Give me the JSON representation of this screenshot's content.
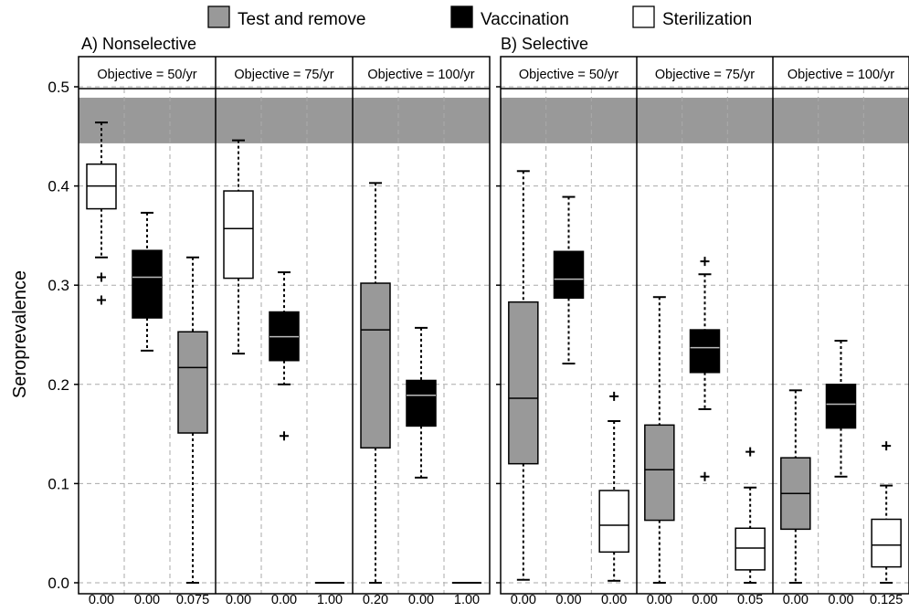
{
  "legend": [
    {
      "label": "Test and remove",
      "color": "#999999"
    },
    {
      "label": "Vaccination",
      "color": "#000000"
    },
    {
      "label": "Sterilization",
      "color": "#ffffff"
    }
  ],
  "ylabel": "Seroprevalence",
  "yticks": [
    "0.0",
    "0.1",
    "0.2",
    "0.3",
    "0.4",
    "0.5"
  ],
  "target_band": [
    0.443,
    0.489
  ],
  "chart_data": {
    "type": "box",
    "ylim": [
      0,
      0.5
    ],
    "ylabel": "Seroprevalence",
    "grid": true,
    "legend_position": "top",
    "groups": [
      {
        "title": "A) Nonselective",
        "panels": [
          {
            "label": "Objective = 50/yr",
            "boxes": [
              {
                "strategy": "Sterilization",
                "color": "#ffffff",
                "min": 0.328,
                "q1": 0.377,
                "median": 0.4,
                "q3": 0.422,
                "max": 0.464,
                "outliers": [
                  0.308,
                  0.285
                ],
                "xlabel": "0.00"
              },
              {
                "strategy": "Vaccination",
                "color": "#000000",
                "min": 0.234,
                "q1": 0.267,
                "median": 0.308,
                "q3": 0.335,
                "max": 0.373,
                "outliers": [],
                "xlabel": "0.00"
              },
              {
                "strategy": "Test and remove",
                "color": "#999999",
                "min": 0.0,
                "q1": 0.151,
                "median": 0.217,
                "q3": 0.253,
                "max": 0.328,
                "outliers": [],
                "xlabel": "0.075"
              }
            ]
          },
          {
            "label": "Objective = 75/yr",
            "boxes": [
              {
                "strategy": "Sterilization",
                "color": "#ffffff",
                "min": 0.231,
                "q1": 0.307,
                "median": 0.357,
                "q3": 0.395,
                "max": 0.446,
                "outliers": [],
                "xlabel": "0.00"
              },
              {
                "strategy": "Vaccination",
                "color": "#000000",
                "min": 0.2,
                "q1": 0.224,
                "median": 0.248,
                "q3": 0.273,
                "max": 0.313,
                "outliers": [
                  0.148
                ],
                "xlabel": "0.00"
              },
              {
                "strategy": "Test and remove",
                "color": "#999999",
                "min": 0.0,
                "q1": 0.0,
                "median": 0.0,
                "q3": 0.0,
                "max": 0.0,
                "outliers": [],
                "xlabel": "1.00"
              }
            ]
          },
          {
            "label": "Objective = 100/yr",
            "boxes": [
              {
                "strategy": "Test and remove",
                "color": "#999999",
                "min": 0.0,
                "q1": 0.136,
                "median": 0.255,
                "q3": 0.302,
                "max": 0.403,
                "outliers": [],
                "xlabel": "0.20"
              },
              {
                "strategy": "Vaccination",
                "color": "#000000",
                "min": 0.106,
                "q1": 0.158,
                "median": 0.189,
                "q3": 0.204,
                "max": 0.257,
                "outliers": [],
                "xlabel": "0.00"
              },
              {
                "strategy": "Test and remove",
                "color": "#999999",
                "min": 0.0,
                "q1": 0.0,
                "median": 0.0,
                "q3": 0.0,
                "max": 0.0,
                "outliers": [],
                "xlabel": "1.00"
              }
            ]
          }
        ]
      },
      {
        "title": "B) Selective",
        "panels": [
          {
            "label": "Objective = 50/yr",
            "boxes": [
              {
                "strategy": "Test and remove",
                "color": "#999999",
                "min": 0.003,
                "q1": 0.12,
                "median": 0.186,
                "q3": 0.283,
                "max": 0.415,
                "outliers": [],
                "xlabel": "0.00"
              },
              {
                "strategy": "Vaccination",
                "color": "#000000",
                "min": 0.221,
                "q1": 0.287,
                "median": 0.306,
                "q3": 0.334,
                "max": 0.389,
                "outliers": [],
                "xlabel": "0.00"
              },
              {
                "strategy": "Sterilization",
                "color": "#ffffff",
                "min": 0.002,
                "q1": 0.031,
                "median": 0.058,
                "q3": 0.093,
                "max": 0.163,
                "outliers": [
                  0.188
                ],
                "xlabel": "0.00"
              }
            ]
          },
          {
            "label": "Objective = 75/yr",
            "boxes": [
              {
                "strategy": "Test and remove",
                "color": "#999999",
                "min": 0.0,
                "q1": 0.063,
                "median": 0.114,
                "q3": 0.159,
                "max": 0.288,
                "outliers": [],
                "xlabel": "0.00"
              },
              {
                "strategy": "Vaccination",
                "color": "#000000",
                "min": 0.175,
                "q1": 0.212,
                "median": 0.237,
                "q3": 0.255,
                "max": 0.311,
                "outliers": [
                  0.324,
                  0.107
                ],
                "xlabel": "0.00"
              },
              {
                "strategy": "Sterilization",
                "color": "#ffffff",
                "min": 0.0,
                "q1": 0.013,
                "median": 0.035,
                "q3": 0.055,
                "max": 0.096,
                "outliers": [
                  0.132
                ],
                "xlabel": "0.05"
              }
            ]
          },
          {
            "label": "Objective = 100/yr",
            "boxes": [
              {
                "strategy": "Test and remove",
                "color": "#999999",
                "min": 0.0,
                "q1": 0.054,
                "median": 0.09,
                "q3": 0.126,
                "max": 0.194,
                "outliers": [],
                "xlabel": "0.00"
              },
              {
                "strategy": "Vaccination",
                "color": "#000000",
                "min": 0.107,
                "q1": 0.156,
                "median": 0.18,
                "q3": 0.2,
                "max": 0.244,
                "outliers": [],
                "xlabel": "0.00"
              },
              {
                "strategy": "Sterilization",
                "color": "#ffffff",
                "min": 0.0,
                "q1": 0.016,
                "median": 0.038,
                "q3": 0.064,
                "max": 0.098,
                "outliers": [
                  0.138
                ],
                "xlabel": "0.125"
              }
            ]
          }
        ]
      }
    ]
  }
}
